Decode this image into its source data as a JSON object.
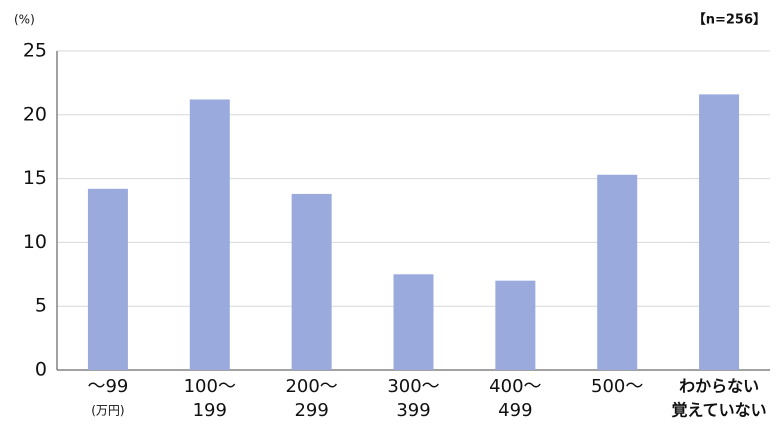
{
  "chart_data": {
    "type": "bar",
    "y_unit": "(%)",
    "annotation": "【n=256】",
    "categories": [
      [
        "〜99",
        "(万円)"
      ],
      [
        "100〜",
        "199"
      ],
      [
        "200〜",
        "299"
      ],
      [
        "300〜",
        "399"
      ],
      [
        "400〜",
        "499"
      ],
      [
        "500〜"
      ],
      [
        "わからない",
        "覚えていない"
      ]
    ],
    "values": [
      14.2,
      21.2,
      13.8,
      7.5,
      7.0,
      15.3,
      21.6
    ],
    "color": "#9aaadc",
    "ylim": [
      0,
      25
    ],
    "yticks": [
      0,
      5,
      10,
      15,
      20,
      25
    ],
    "grid": true
  }
}
